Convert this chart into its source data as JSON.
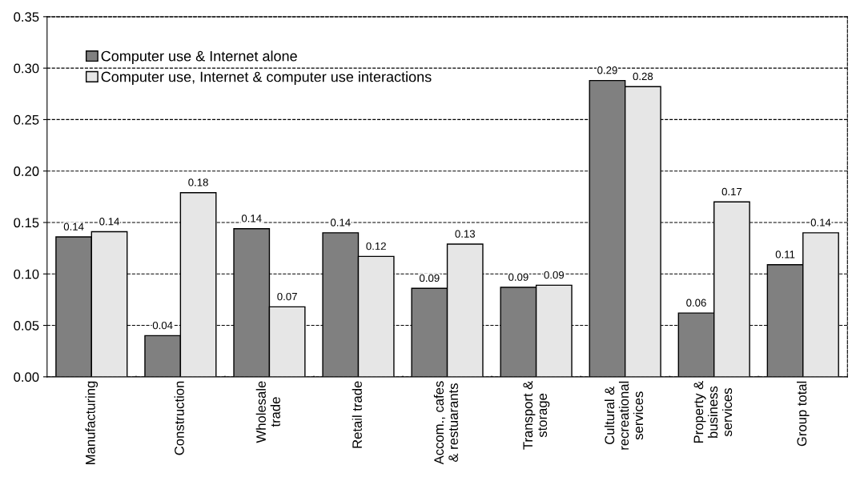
{
  "chart_data": {
    "type": "bar",
    "categories": [
      "Manufacturing",
      "Construction",
      "Wholesale\ntrade",
      "Retail trade",
      "Accom., cafes\n& restuarants",
      "Transport &\nstorage",
      "Cultural &\nrecreational\nservices",
      "Property &\nbusiness\nservices",
      "Group total"
    ],
    "series": [
      {
        "name": "Computer use & Internet alone",
        "color": "#808080",
        "values": [
          0.136,
          0.04,
          0.144,
          0.14,
          0.086,
          0.087,
          0.288,
          0.062,
          0.109
        ],
        "value_labels": [
          "0.14",
          "0.04",
          "0.14",
          "0.14",
          "0.09",
          "0.09",
          "0.29",
          "0.06",
          "0.11"
        ]
      },
      {
        "name": "Computer use, Internet & computer use interactions",
        "color": "#e6e6e6",
        "values": [
          0.141,
          0.179,
          0.068,
          0.117,
          0.129,
          0.089,
          0.282,
          0.17,
          0.14
        ],
        "value_labels": [
          "0.14",
          "0.18",
          "0.07",
          "0.12",
          "0.13",
          "0.09",
          "0.28",
          "0.17",
          "0.14"
        ]
      }
    ],
    "ylim": [
      0,
      0.35
    ],
    "yticks": [
      {
        "value": 0,
        "label": "0.00"
      },
      {
        "value": 0.05,
        "label": "0.05"
      },
      {
        "value": 0.1,
        "label": "0.10"
      },
      {
        "value": 0.15,
        "label": "0.15"
      },
      {
        "value": 0.2,
        "label": "0.20"
      },
      {
        "value": 0.25,
        "label": "0.25"
      },
      {
        "value": 0.3,
        "label": "0.30"
      },
      {
        "value": 0.35,
        "label": "0.35"
      }
    ],
    "grid": "y",
    "legend": "top left"
  }
}
